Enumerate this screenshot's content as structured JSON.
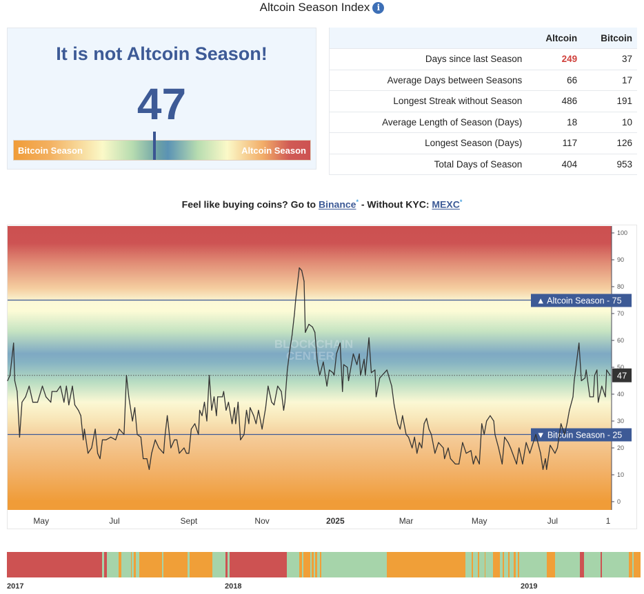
{
  "header": {
    "title": "Altcoin Season Index",
    "info_icon": "info-icon"
  },
  "status": {
    "headline": "It is not Altcoin Season!",
    "index_value": 47,
    "gauge": {
      "left_label": "Bitcoin Season",
      "right_label": "Altcoin Season",
      "level": 47,
      "range": [
        0,
        100
      ]
    }
  },
  "stats": {
    "columns": [
      "",
      "Altcoin",
      "Bitcoin"
    ],
    "rows": [
      {
        "label": "Days since last Season",
        "altcoin": "249",
        "bitcoin": "37"
      },
      {
        "label": "Average Days between Seasons",
        "altcoin": "66",
        "bitcoin": "17"
      },
      {
        "label": "Longest Streak without Season",
        "altcoin": "486",
        "bitcoin": "191"
      },
      {
        "label": "Average Length of Season (Days)",
        "altcoin": "18",
        "bitcoin": "10"
      },
      {
        "label": "Longest Season (Days)",
        "altcoin": "117",
        "bitcoin": "126"
      },
      {
        "label": "Total Days of Season",
        "altcoin": "404",
        "bitcoin": "953"
      }
    ],
    "highlight_color": "#d0413c"
  },
  "promo": {
    "text1": "Feel like buying coins? Go to ",
    "link1": "Binance",
    "star": "*",
    "text2": " - Without KYC: ",
    "link2": "MEXC"
  },
  "chart_data": {
    "type": "line",
    "watermark": "BLOCKCHAIN CENTER",
    "ylim": [
      0,
      100
    ],
    "yticks": [
      0,
      10,
      20,
      30,
      40,
      50,
      60,
      70,
      80,
      90,
      100
    ],
    "xlim": [
      "2024-04-03",
      "2025-08-18"
    ],
    "xticks": [
      {
        "date": "2024-05-01",
        "label": "May",
        "bold": false
      },
      {
        "date": "2024-07-01",
        "label": "Jul",
        "bold": false
      },
      {
        "date": "2024-09-01",
        "label": "Sept",
        "bold": false
      },
      {
        "date": "2024-11-01",
        "label": "Nov",
        "bold": false
      },
      {
        "date": "2025-01-01",
        "label": "2025",
        "bold": true
      },
      {
        "date": "2025-03-01",
        "label": "Mar",
        "bold": false
      },
      {
        "date": "2025-05-01",
        "label": "May",
        "bold": false
      },
      {
        "date": "2025-07-01",
        "label": "Jul",
        "bold": false
      },
      {
        "date": "2025-08-18",
        "label": "1",
        "bold": false
      }
    ],
    "thresholds": [
      {
        "value": 75,
        "label": "Altcoin Season - 75",
        "arrow": "▲"
      },
      {
        "value": 25,
        "label": "Bitcoin Season - 25",
        "arrow": "▼"
      }
    ],
    "current": {
      "value": 47,
      "label": "47"
    },
    "line_color": "#333333",
    "band_colors": {
      "top": "#cc5050",
      "middle": "#7ea9c3",
      "bottom": "#f09c38"
    },
    "grid": false,
    "series": [
      {
        "points": [
          [
            "2024-04-03",
            45
          ],
          [
            "2024-04-05",
            47
          ],
          [
            "2024-04-08",
            59
          ],
          [
            "2024-04-09",
            45
          ],
          [
            "2024-04-11",
            41
          ],
          [
            "2024-04-13",
            24
          ],
          [
            "2024-04-15",
            37
          ],
          [
            "2024-04-18",
            39
          ],
          [
            "2024-04-21",
            43
          ],
          [
            "2024-04-24",
            37
          ],
          [
            "2024-04-28",
            37
          ],
          [
            "2024-05-02",
            43
          ],
          [
            "2024-05-05",
            39
          ],
          [
            "2024-05-09",
            37
          ],
          [
            "2024-05-10",
            41
          ],
          [
            "2024-05-14",
            41
          ],
          [
            "2024-05-17",
            43
          ],
          [
            "2024-05-20",
            37
          ],
          [
            "2024-05-22",
            43
          ],
          [
            "2024-05-24",
            36
          ],
          [
            "2024-05-27",
            43
          ],
          [
            "2024-05-29",
            36
          ],
          [
            "2024-06-01",
            34
          ],
          [
            "2024-06-03",
            32
          ],
          [
            "2024-06-05",
            23
          ],
          [
            "2024-06-06",
            27
          ],
          [
            "2024-06-09",
            18
          ],
          [
            "2024-06-12",
            20
          ],
          [
            "2024-06-15",
            27
          ],
          [
            "2024-06-17",
            18
          ],
          [
            "2024-06-19",
            16
          ],
          [
            "2024-06-21",
            23
          ],
          [
            "2024-06-24",
            23
          ],
          [
            "2024-06-28",
            24
          ],
          [
            "2024-07-02",
            23
          ],
          [
            "2024-07-05",
            27
          ],
          [
            "2024-07-09",
            25
          ],
          [
            "2024-07-11",
            47
          ],
          [
            "2024-07-13",
            39
          ],
          [
            "2024-07-16",
            30
          ],
          [
            "2024-07-18",
            35
          ],
          [
            "2024-07-20",
            25
          ],
          [
            "2024-07-23",
            24
          ],
          [
            "2024-07-25",
            16
          ],
          [
            "2024-07-28",
            16
          ],
          [
            "2024-07-30",
            12
          ],
          [
            "2024-08-01",
            18
          ],
          [
            "2024-08-04",
            23
          ],
          [
            "2024-08-07",
            20
          ],
          [
            "2024-08-11",
            18
          ],
          [
            "2024-08-12",
            24
          ],
          [
            "2024-08-14",
            32
          ],
          [
            "2024-08-17",
            20
          ],
          [
            "2024-08-20",
            23
          ],
          [
            "2024-08-22",
            23
          ],
          [
            "2024-08-24",
            18
          ],
          [
            "2024-08-28",
            20
          ],
          [
            "2024-08-30",
            18
          ],
          [
            "2024-09-01",
            18
          ],
          [
            "2024-09-03",
            27
          ],
          [
            "2024-09-06",
            29
          ],
          [
            "2024-09-09",
            25
          ],
          [
            "2024-09-10",
            34
          ],
          [
            "2024-09-12",
            32
          ],
          [
            "2024-09-14",
            37
          ],
          [
            "2024-09-16",
            30
          ],
          [
            "2024-09-18",
            47
          ],
          [
            "2024-09-20",
            34
          ],
          [
            "2024-09-22",
            39
          ],
          [
            "2024-09-24",
            32
          ],
          [
            "2024-09-25",
            39
          ],
          [
            "2024-09-29",
            39
          ],
          [
            "2024-09-30",
            41
          ],
          [
            "2024-10-02",
            34
          ],
          [
            "2024-10-04",
            37
          ],
          [
            "2024-10-07",
            29
          ],
          [
            "2024-10-09",
            35
          ],
          [
            "2024-10-10",
            29
          ],
          [
            "2024-10-12",
            37
          ],
          [
            "2024-10-14",
            23
          ],
          [
            "2024-10-17",
            25
          ],
          [
            "2024-10-19",
            34
          ],
          [
            "2024-10-21",
            29
          ],
          [
            "2024-10-22",
            35
          ],
          [
            "2024-10-25",
            32
          ],
          [
            "2024-10-27",
            29
          ],
          [
            "2024-10-29",
            34
          ],
          [
            "2024-11-01",
            27
          ],
          [
            "2024-11-04",
            35
          ],
          [
            "2024-11-06",
            43
          ],
          [
            "2024-11-09",
            37
          ],
          [
            "2024-11-11",
            36
          ],
          [
            "2024-11-14",
            43
          ],
          [
            "2024-11-17",
            41
          ],
          [
            "2024-11-19",
            34
          ],
          [
            "2024-11-20",
            37
          ],
          [
            "2024-11-22",
            49
          ],
          [
            "2024-11-24",
            56
          ],
          [
            "2024-11-26",
            62
          ],
          [
            "2024-11-28",
            70
          ],
          [
            "2024-11-29",
            75
          ],
          [
            "2024-12-02",
            87
          ],
          [
            "2024-12-04",
            86
          ],
          [
            "2024-12-06",
            82
          ],
          [
            "2024-12-07",
            63
          ],
          [
            "2024-12-10",
            66
          ],
          [
            "2024-12-13",
            65
          ],
          [
            "2024-12-15",
            63
          ],
          [
            "2024-12-17",
            52
          ],
          [
            "2024-12-19",
            47
          ],
          [
            "2024-12-22",
            52
          ],
          [
            "2024-12-25",
            43
          ],
          [
            "2024-12-27",
            49
          ],
          [
            "2024-12-30",
            48
          ],
          [
            "2024-12-31",
            47
          ],
          [
            "2025-01-02",
            55
          ],
          [
            "2025-01-05",
            59
          ],
          [
            "2025-01-07",
            41
          ],
          [
            "2025-01-08",
            51
          ],
          [
            "2025-01-11",
            50
          ],
          [
            "2025-01-12",
            45
          ],
          [
            "2025-01-16",
            55
          ],
          [
            "2025-01-19",
            51
          ],
          [
            "2025-01-21",
            55
          ],
          [
            "2025-01-22",
            47
          ],
          [
            "2025-01-25",
            53
          ],
          [
            "2025-01-26",
            47
          ],
          [
            "2025-01-29",
            61
          ],
          [
            "2025-01-31",
            48
          ],
          [
            "2025-02-03",
            49
          ],
          [
            "2025-02-04",
            39
          ],
          [
            "2025-02-07",
            46
          ],
          [
            "2025-02-11",
            48
          ],
          [
            "2025-02-13",
            49
          ],
          [
            "2025-02-17",
            43
          ],
          [
            "2025-02-19",
            36
          ],
          [
            "2025-02-22",
            29
          ],
          [
            "2025-02-24",
            27
          ],
          [
            "2025-02-26",
            32
          ],
          [
            "2025-03-01",
            25
          ],
          [
            "2025-03-03",
            24
          ],
          [
            "2025-03-06",
            20
          ],
          [
            "2025-03-08",
            24
          ],
          [
            "2025-03-10",
            18
          ],
          [
            "2025-03-12",
            22
          ],
          [
            "2025-03-14",
            20
          ],
          [
            "2025-03-16",
            29
          ],
          [
            "2025-03-18",
            31
          ],
          [
            "2025-03-20",
            27
          ],
          [
            "2025-03-22",
            25
          ],
          [
            "2025-03-25",
            18
          ],
          [
            "2025-03-28",
            22
          ],
          [
            "2025-04-01",
            20
          ],
          [
            "2025-04-02",
            16
          ],
          [
            "2025-04-05",
            20
          ],
          [
            "2025-04-07",
            16
          ],
          [
            "2025-04-11",
            14
          ],
          [
            "2025-04-14",
            14
          ],
          [
            "2025-04-17",
            22
          ],
          [
            "2025-04-20",
            18
          ],
          [
            "2025-04-24",
            19
          ],
          [
            "2025-04-26",
            14
          ],
          [
            "2025-04-28",
            17
          ],
          [
            "2025-05-01",
            14
          ],
          [
            "2025-05-03",
            29
          ],
          [
            "2025-05-05",
            25
          ],
          [
            "2025-05-07",
            30
          ],
          [
            "2025-05-10",
            32
          ],
          [
            "2025-05-13",
            30
          ],
          [
            "2025-05-14",
            25
          ],
          [
            "2025-05-17",
            20
          ],
          [
            "2025-05-20",
            14
          ],
          [
            "2025-05-22",
            24
          ],
          [
            "2025-05-25",
            22
          ],
          [
            "2025-05-27",
            20
          ],
          [
            "2025-06-01",
            14
          ],
          [
            "2025-06-03",
            20
          ],
          [
            "2025-06-06",
            14
          ],
          [
            "2025-06-09",
            22
          ],
          [
            "2025-06-12",
            18
          ],
          [
            "2025-06-17",
            25
          ],
          [
            "2025-06-21",
            18
          ],
          [
            "2025-06-23",
            12
          ],
          [
            "2025-06-25",
            16
          ],
          [
            "2025-06-26",
            12
          ],
          [
            "2025-06-29",
            21
          ],
          [
            "2025-07-03",
            18
          ],
          [
            "2025-07-05",
            20
          ],
          [
            "2025-07-08",
            29
          ],
          [
            "2025-07-11",
            25
          ],
          [
            "2025-07-13",
            29
          ],
          [
            "2025-07-15",
            34
          ],
          [
            "2025-07-18",
            39
          ],
          [
            "2025-07-19",
            45
          ],
          [
            "2025-07-23",
            59
          ],
          [
            "2025-07-25",
            45
          ],
          [
            "2025-07-28",
            46
          ],
          [
            "2025-07-29",
            49
          ],
          [
            "2025-08-01",
            39
          ],
          [
            "2025-08-04",
            39
          ],
          [
            "2025-08-05",
            47
          ],
          [
            "2025-08-07",
            49
          ],
          [
            "2025-08-08",
            37
          ],
          [
            "2025-08-11",
            43
          ],
          [
            "2025-08-14",
            39
          ],
          [
            "2025-08-15",
            49
          ],
          [
            "2025-08-18",
            47
          ]
        ]
      }
    ]
  },
  "season_history": {
    "year_labels": [
      "2017",
      "2018",
      "2019"
    ],
    "colors": {
      "altcoin": "#cd5252",
      "bitcoin": "#f09f38",
      "neutral": "#a6d4aa"
    },
    "segments": [
      [
        "altcoin",
        230
      ],
      [
        "neutral",
        6
      ],
      [
        "altcoin",
        7
      ],
      [
        "neutral",
        27
      ],
      [
        "bitcoin",
        7
      ],
      [
        "neutral",
        23
      ],
      [
        "bitcoin",
        3
      ],
      [
        "neutral",
        5
      ],
      [
        "bitcoin",
        5
      ],
      [
        "neutral",
        8
      ],
      [
        "bitcoin",
        54
      ],
      [
        "neutral",
        4
      ],
      [
        "bitcoin",
        59
      ],
      [
        "neutral",
        5
      ],
      [
        "bitcoin",
        54
      ],
      [
        "neutral",
        32
      ],
      [
        "altcoin",
        6
      ],
      [
        "neutral",
        4
      ],
      [
        "altcoin",
        139
      ],
      [
        "neutral",
        30
      ],
      [
        "bitcoin",
        7
      ],
      [
        "neutral",
        3
      ],
      [
        "bitcoin",
        17
      ],
      [
        "neutral",
        4
      ],
      [
        "bitcoin",
        4
      ],
      [
        "neutral",
        4
      ],
      [
        "bitcoin",
        4
      ],
      [
        "neutral",
        7
      ],
      [
        "bitcoin",
        3
      ],
      [
        "neutral",
        159
      ],
      [
        "bitcoin",
        190
      ],
      [
        "neutral",
        16
      ],
      [
        "bitcoin",
        3
      ],
      [
        "neutral",
        12
      ],
      [
        "bitcoin",
        4
      ],
      [
        "neutral",
        12
      ],
      [
        "bitcoin",
        3
      ],
      [
        "neutral",
        18
      ],
      [
        "bitcoin",
        17
      ],
      [
        "neutral",
        6
      ],
      [
        "bitcoin",
        4
      ],
      [
        "neutral",
        10
      ],
      [
        "bitcoin",
        3
      ],
      [
        "neutral",
        10
      ],
      [
        "bitcoin",
        5
      ],
      [
        "neutral",
        5
      ],
      [
        "bitcoin",
        3
      ],
      [
        "neutral",
        67
      ],
      [
        "bitcoin",
        20
      ],
      [
        "neutral",
        60
      ],
      [
        "altcoin",
        10
      ],
      [
        "neutral",
        40
      ],
      [
        "altcoin",
        3
      ],
      [
        "neutral",
        65
      ],
      [
        "bitcoin",
        9
      ],
      [
        "neutral",
        3
      ],
      [
        "bitcoin",
        17
      ]
    ]
  }
}
